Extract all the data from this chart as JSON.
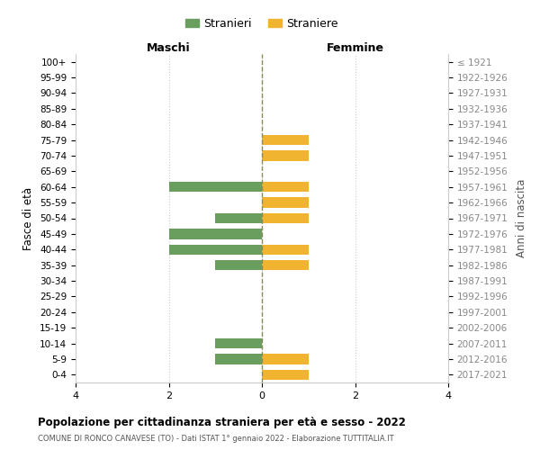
{
  "age_groups": [
    "100+",
    "95-99",
    "90-94",
    "85-89",
    "80-84",
    "75-79",
    "70-74",
    "65-69",
    "60-64",
    "55-59",
    "50-54",
    "45-49",
    "40-44",
    "35-39",
    "30-34",
    "25-29",
    "20-24",
    "15-19",
    "10-14",
    "5-9",
    "0-4"
  ],
  "birth_years": [
    "≤ 1921",
    "1922-1926",
    "1927-1931",
    "1932-1936",
    "1937-1941",
    "1942-1946",
    "1947-1951",
    "1952-1956",
    "1957-1961",
    "1962-1966",
    "1967-1971",
    "1972-1976",
    "1977-1981",
    "1982-1986",
    "1987-1991",
    "1992-1996",
    "1997-2001",
    "2002-2006",
    "2007-2011",
    "2012-2016",
    "2017-2021"
  ],
  "maschi": [
    0,
    0,
    0,
    0,
    0,
    0,
    0,
    0,
    2,
    0,
    1,
    2,
    2,
    1,
    0,
    0,
    0,
    0,
    1,
    1,
    0
  ],
  "femmine": [
    0,
    0,
    0,
    0,
    0,
    1,
    1,
    0,
    1,
    1,
    1,
    0,
    1,
    1,
    0,
    0,
    0,
    0,
    0,
    1,
    1
  ],
  "color_maschi": "#6a9e5e",
  "color_femmine": "#f0b430",
  "color_grid": "#cccccc",
  "color_center_line": "#8b8b5a",
  "xlim": [
    -4,
    4
  ],
  "xticks": [
    -4,
    -2,
    0,
    2,
    4
  ],
  "xtick_labels": [
    "4",
    "2",
    "0",
    "2",
    "4"
  ],
  "title": "Popolazione per cittadinanza straniera per età e sesso - 2022",
  "subtitle": "COMUNE DI RONCO CANAVESE (TO) - Dati ISTAT 1° gennaio 2022 - Elaborazione TUTTITALIA.IT",
  "ylabel_left": "Fasce di età",
  "ylabel_right": "Anni di nascita",
  "header_left": "Maschi",
  "header_right": "Femmine",
  "legend_stranieri": "Stranieri",
  "legend_straniere": "Straniere",
  "background_color": "#ffffff",
  "bar_height": 0.65
}
